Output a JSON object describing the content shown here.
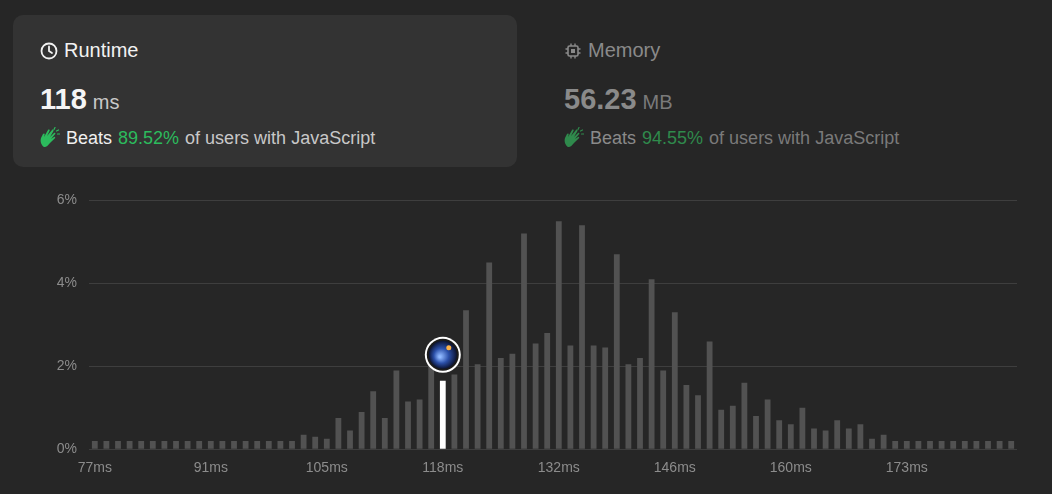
{
  "header": {
    "runtime": {
      "label": "Runtime",
      "value": 118,
      "unit": "ms",
      "beats_prefix": "Beats",
      "beats": "89.52%",
      "beats_suffix": "of users with JavaScript"
    },
    "memory": {
      "label": "Memory",
      "value": 56.23,
      "unit": "MB",
      "beats_prefix": "Beats",
      "beats": "94.55%",
      "beats_suffix": "of users with JavaScript"
    }
  },
  "chart_data": {
    "type": "bar",
    "categories": [
      "77ms",
      null,
      null,
      null,
      null,
      null,
      null,
      null,
      null,
      null,
      "91ms",
      null,
      null,
      null,
      null,
      null,
      null,
      null,
      null,
      null,
      "105ms",
      null,
      null,
      null,
      null,
      null,
      null,
      null,
      null,
      null,
      "118ms",
      null,
      null,
      null,
      null,
      null,
      null,
      null,
      null,
      null,
      "132ms",
      null,
      null,
      null,
      null,
      null,
      null,
      null,
      null,
      null,
      "146ms",
      null,
      null,
      null,
      null,
      null,
      null,
      null,
      null,
      null,
      "160ms",
      null,
      null,
      null,
      null,
      null,
      null,
      null,
      null,
      null,
      "173ms",
      null,
      null,
      null,
      null,
      null,
      null,
      null,
      null,
      null
    ],
    "values": [
      0.2,
      0.2,
      0.2,
      0.2,
      0.2,
      0.2,
      0.2,
      0.2,
      0.2,
      0.2,
      0.2,
      0.2,
      0.2,
      0.2,
      0.2,
      0.2,
      0.2,
      0.2,
      0.35,
      0.3,
      0.25,
      0.75,
      0.45,
      0.9,
      1.4,
      0.75,
      1.9,
      1.15,
      1.2,
      2.1,
      1.65,
      1.8,
      3.35,
      2.05,
      4.5,
      2.2,
      2.3,
      5.2,
      2.55,
      2.8,
      5.5,
      2.5,
      5.4,
      2.5,
      2.45,
      4.7,
      2.05,
      2.2,
      4.1,
      1.9,
      3.3,
      1.55,
      1.3,
      2.6,
      0.95,
      1.05,
      1.6,
      0.8,
      1.2,
      0.7,
      0.6,
      1.0,
      0.5,
      0.45,
      0.7,
      0.5,
      0.6,
      0.25,
      0.35,
      0.2,
      0.2,
      0.2,
      0.2,
      0.2,
      0.2,
      0.2,
      0.2,
      0.2,
      0.2,
      0.2
    ],
    "colors": [
      "#525252",
      "#525252",
      "#525252",
      "#525252",
      "#525252",
      "#525252",
      "#525252",
      "#525252",
      "#525252",
      "#525252",
      "#525252",
      "#525252",
      "#525252",
      "#525252",
      "#525252",
      "#525252",
      "#525252",
      "#525252",
      "#525252",
      "#525252",
      "#525252",
      "#525252",
      "#525252",
      "#525252",
      "#525252",
      "#525252",
      "#525252",
      "#525252",
      "#525252",
      "#525252",
      "#ffffff",
      "#525252",
      "#525252",
      "#525252",
      "#525252",
      "#525252",
      "#525252",
      "#525252",
      "#525252",
      "#525252",
      "#525252",
      "#525252",
      "#525252",
      "#525252",
      "#525252",
      "#525252",
      "#525252",
      "#525252",
      "#525252",
      "#525252",
      "#525252",
      "#525252",
      "#525252",
      "#525252",
      "#525252",
      "#525252",
      "#525252",
      "#525252",
      "#525252",
      "#525252",
      "#525252",
      "#525252",
      "#525252",
      "#525252",
      "#525252",
      "#525252",
      "#525252",
      "#525252",
      "#525252",
      "#525252",
      "#525252",
      "#525252",
      "#525252",
      "#525252",
      "#525252",
      "#525252",
      "#525252",
      "#525252",
      "#525252",
      "#525252"
    ],
    "ylim": [
      0,
      6
    ],
    "yticks": [
      {
        "value": 0,
        "label": "0%"
      },
      {
        "value": 2,
        "label": "2%"
      },
      {
        "value": 4,
        "label": "4%"
      },
      {
        "value": 6,
        "label": "6%"
      }
    ],
    "grid": true
  }
}
